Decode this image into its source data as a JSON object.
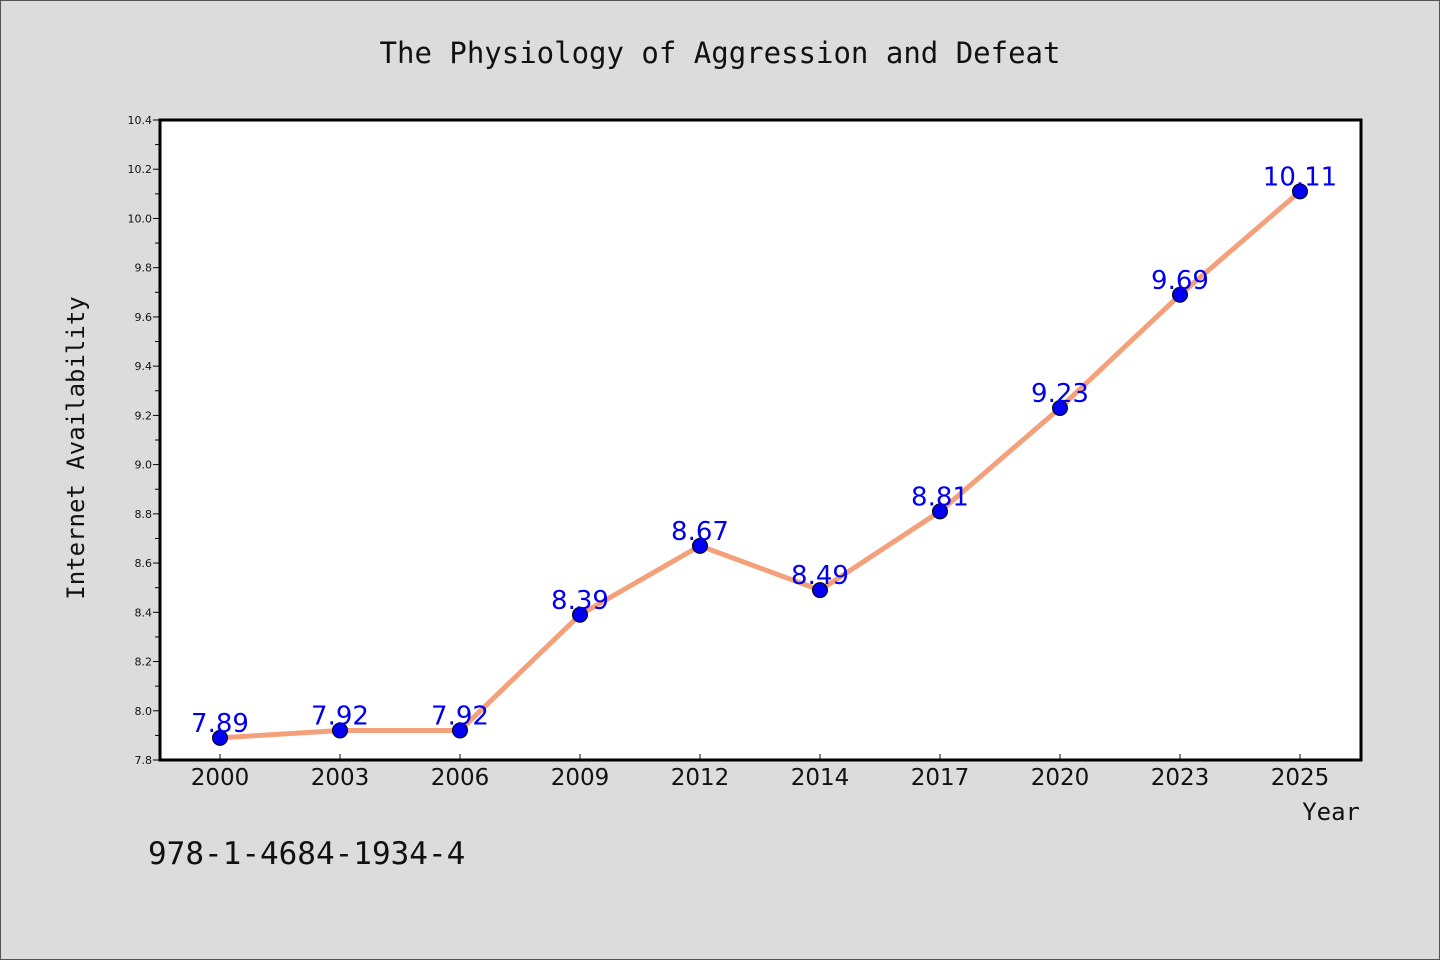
{
  "chart_data": {
    "type": "line",
    "title": "The Physiology of Aggression and Defeat",
    "xlabel": "Year",
    "ylabel": "Internet Availability",
    "categories": [
      "2000",
      "2003",
      "2006",
      "2009",
      "2012",
      "2014",
      "2017",
      "2020",
      "2023",
      "2025"
    ],
    "series": [
      {
        "values": [
          7.89,
          7.92,
          7.92,
          8.39,
          8.67,
          8.49,
          8.81,
          9.23,
          9.69,
          10.11
        ],
        "labels": [
          "7.89",
          "7.92",
          "7.92",
          "8.39",
          "8.67",
          "8.49",
          "8.81",
          "9.23",
          "9.69",
          "10.11"
        ],
        "line_color": "#f4a07a",
        "marker_color": "#0000ee",
        "label_color": "#0000ee"
      }
    ],
    "ylim": [
      7.8,
      10.4
    ],
    "yticks": [
      "7.8",
      "8.0",
      "8.2",
      "8.4",
      "8.6",
      "8.8",
      "9.0",
      "9.2",
      "9.4",
      "9.6",
      "9.8",
      "10.0",
      "10.2",
      "10.4"
    ],
    "grid": false,
    "legend": "none",
    "plot_background": "#ffffff",
    "page_background": "#dcdcdc"
  },
  "footer": {
    "isbn": "978-1-4684-1934-4"
  }
}
